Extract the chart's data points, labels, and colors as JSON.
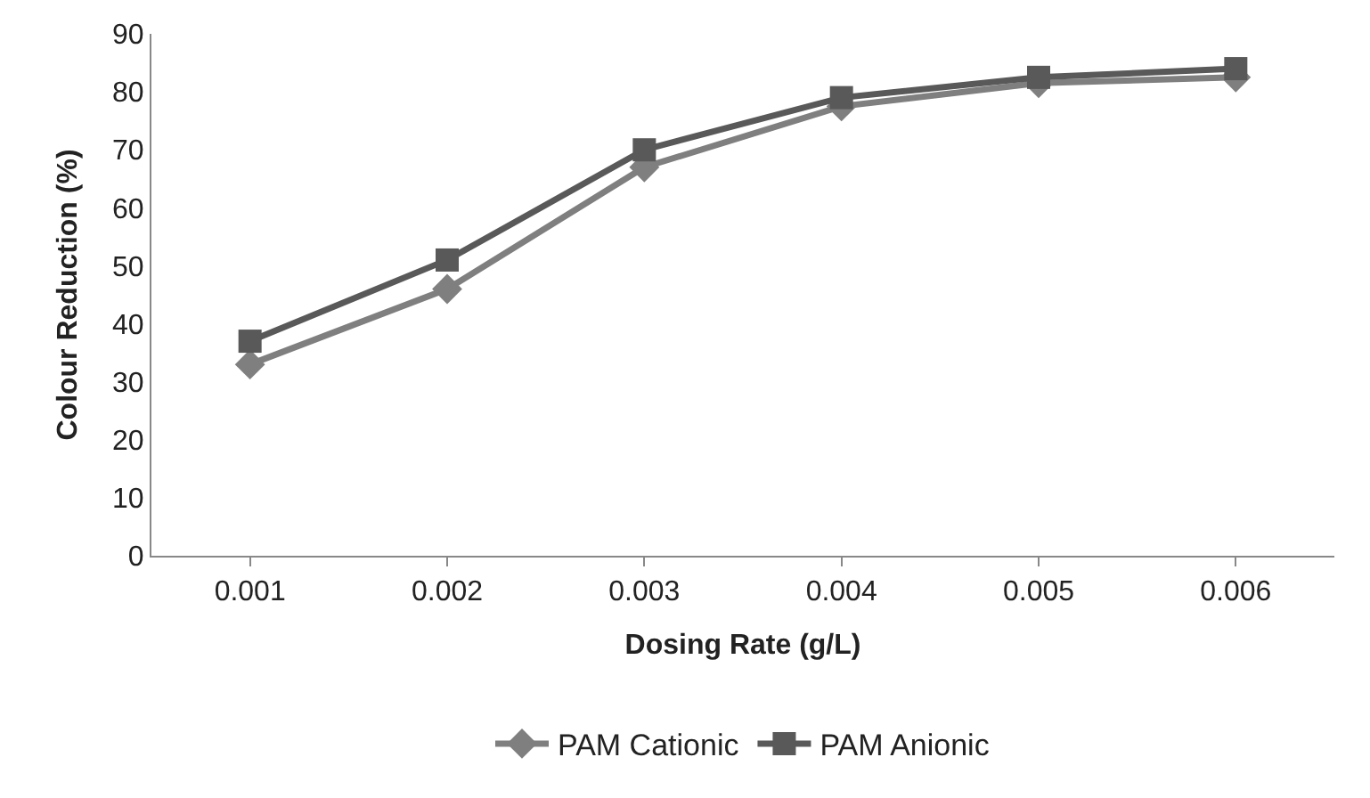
{
  "chart_data": {
    "type": "line",
    "xlabel": "Dosing Rate (g/L)",
    "ylabel": "Colour Reduction (%)",
    "categories": [
      "0.001",
      "0.002",
      "0.003",
      "0.004",
      "0.005",
      "0.006"
    ],
    "series": [
      {
        "name": "PAM Cationic",
        "color": "#7f7f7f",
        "marker": "diamond",
        "values": [
          33,
          46,
          67,
          77.5,
          81.5,
          82.5
        ]
      },
      {
        "name": "PAM Anionic",
        "color": "#595959",
        "marker": "square",
        "values": [
          37,
          51,
          70,
          79,
          82.5,
          84
        ]
      }
    ],
    "ylim": [
      0,
      90
    ],
    "yticks": [
      0,
      10,
      20,
      30,
      40,
      50,
      60,
      70,
      80,
      90
    ],
    "legend": "bottom"
  }
}
